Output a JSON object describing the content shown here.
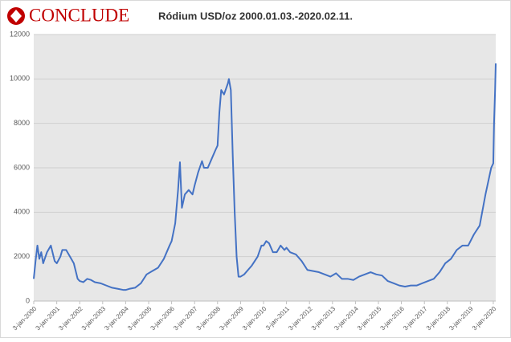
{
  "logo": "CONCLUDE",
  "chart_data": {
    "type": "line",
    "title": "Ródium USD/oz 2000.01.03.-2020.02.11.",
    "color": "#4472c4",
    "grid": true,
    "xlim": [
      "2000-01-03",
      "2020-02-11"
    ],
    "ylim": [
      0,
      12000
    ],
    "yticks": [
      0,
      2000,
      4000,
      6000,
      8000,
      10000,
      12000
    ],
    "xticks": [
      {
        "value": "2000-01-03",
        "label": "3-jan-2000"
      },
      {
        "value": "2001-01-03",
        "label": "3-jan-2001"
      },
      {
        "value": "2002-01-03",
        "label": "3-jan-2002"
      },
      {
        "value": "2003-01-03",
        "label": "3-jan-2003"
      },
      {
        "value": "2004-01-03",
        "label": "3-jan-2004"
      },
      {
        "value": "2005-01-03",
        "label": "3-jan-2005"
      },
      {
        "value": "2006-01-03",
        "label": "3-jan-2006"
      },
      {
        "value": "2007-01-03",
        "label": "3-jan-2007"
      },
      {
        "value": "2008-01-03",
        "label": "3-jan-2008"
      },
      {
        "value": "2009-01-03",
        "label": "3-jan-2009"
      },
      {
        "value": "2010-01-03",
        "label": "3-jan-2010"
      },
      {
        "value": "2011-01-03",
        "label": "3-jan-2011"
      },
      {
        "value": "2012-01-03",
        "label": "3-jan-2012"
      },
      {
        "value": "2013-01-03",
        "label": "3-jan-2013"
      },
      {
        "value": "2014-01-03",
        "label": "3-jan-2014"
      },
      {
        "value": "2015-01-03",
        "label": "3-jan-2015"
      },
      {
        "value": "2016-01-03",
        "label": "3-jan-2016"
      },
      {
        "value": "2017-01-03",
        "label": "3-jan-2017"
      },
      {
        "value": "2018-01-03",
        "label": "3-jan-2018"
      },
      {
        "value": "2019-01-03",
        "label": "3-jan-2019"
      },
      {
        "value": "2020-01-03",
        "label": "3-jan-2020"
      }
    ],
    "x": [
      "2000-01-03",
      "2000-02-01",
      "2000-03-01",
      "2000-04-01",
      "2000-05-01",
      "2000-06-01",
      "2000-08-01",
      "2000-10-01",
      "2000-12-01",
      "2001-01-03",
      "2001-03-01",
      "2001-04-01",
      "2001-06-01",
      "2001-08-01",
      "2001-10-01",
      "2001-12-01",
      "2002-01-03",
      "2002-03-01",
      "2002-05-01",
      "2002-07-01",
      "2002-09-01",
      "2002-12-01",
      "2003-03-01",
      "2003-06-01",
      "2003-09-01",
      "2003-12-01",
      "2004-01-03",
      "2004-03-01",
      "2004-06-01",
      "2004-09-01",
      "2004-12-01",
      "2005-03-01",
      "2005-06-01",
      "2005-09-01",
      "2005-12-01",
      "2006-01-03",
      "2006-03-01",
      "2006-04-15",
      "2006-05-15",
      "2006-06-15",
      "2006-08-01",
      "2006-10-01",
      "2006-12-01",
      "2007-01-03",
      "2007-03-01",
      "2007-05-01",
      "2007-06-01",
      "2007-08-01",
      "2007-10-01",
      "2007-12-01",
      "2008-01-03",
      "2008-02-01",
      "2008-03-01",
      "2008-04-15",
      "2008-06-15",
      "2008-07-01",
      "2008-08-01",
      "2008-09-01",
      "2008-10-01",
      "2008-11-01",
      "2008-12-01",
      "2009-01-03",
      "2009-03-01",
      "2009-05-01",
      "2009-07-01",
      "2009-10-01",
      "2009-12-01",
      "2010-01-03",
      "2010-02-15",
      "2010-04-01",
      "2010-06-01",
      "2010-08-01",
      "2010-10-01",
      "2010-12-01",
      "2011-01-03",
      "2011-03-01",
      "2011-06-01",
      "2011-09-01",
      "2011-12-01",
      "2012-03-01",
      "2012-06-01",
      "2012-09-01",
      "2012-12-01",
      "2013-03-01",
      "2013-06-01",
      "2013-09-01",
      "2013-12-01",
      "2014-03-01",
      "2014-06-01",
      "2014-09-01",
      "2014-12-01",
      "2015-03-01",
      "2015-06-01",
      "2015-09-01",
      "2015-12-01",
      "2016-03-01",
      "2016-06-01",
      "2016-09-01",
      "2016-12-01",
      "2017-03-01",
      "2017-06-01",
      "2017-09-01",
      "2017-12-01",
      "2018-03-01",
      "2018-06-01",
      "2018-09-01",
      "2018-12-01",
      "2019-03-01",
      "2019-06-01",
      "2019-09-01",
      "2019-12-01",
      "2020-01-03",
      "2020-01-15",
      "2020-02-01",
      "2020-02-11"
    ],
    "values": [
      1000,
      1800,
      2500,
      1900,
      2200,
      1700,
      2200,
      2500,
      1800,
      1700,
      2000,
      2300,
      2300,
      2000,
      1700,
      1000,
      900,
      850,
      1000,
      950,
      850,
      800,
      700,
      600,
      550,
      500,
      500,
      550,
      600,
      800,
      1200,
      1350,
      1500,
      1900,
      2500,
      2700,
      3500,
      5000,
      6250,
      4200,
      4800,
      5000,
      4800,
      5200,
      5800,
      6300,
      6000,
      6000,
      6400,
      6800,
      7000,
      8500,
      9500,
      9300,
      9800,
      10000,
      9500,
      6500,
      4000,
      2000,
      1100,
      1100,
      1200,
      1400,
      1600,
      2000,
      2500,
      2500,
      2700,
      2600,
      2200,
      2200,
      2500,
      2300,
      2400,
      2200,
      2100,
      1800,
      1400,
      1350,
      1300,
      1200,
      1100,
      1250,
      1000,
      1000,
      950,
      1100,
      1200,
      1300,
      1200,
      1150,
      900,
      800,
      700,
      650,
      700,
      700,
      800,
      900,
      1000,
      1300,
      1700,
      1900,
      2300,
      2500,
      2500,
      3000,
      3400,
      4800,
      6000,
      6200,
      8000,
      9500,
      10700
    ]
  }
}
